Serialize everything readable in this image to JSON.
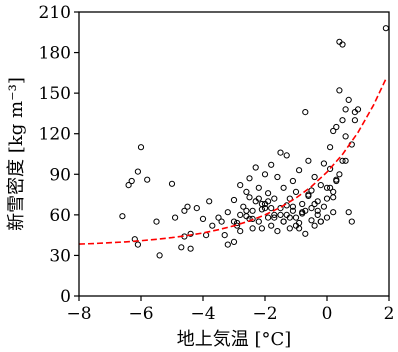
{
  "chart_data": {
    "type": "scatter",
    "title": "",
    "xlabel": "地上気温 [°C]",
    "ylabel": "新雪密度 [kg m⁻³]",
    "xlim": [
      -8,
      2
    ],
    "ylim": [
      0,
      210
    ],
    "xticks": [
      -8,
      -6,
      -4,
      -2,
      0,
      2
    ],
    "yticks": [
      0,
      30,
      60,
      90,
      120,
      150,
      180,
      210
    ],
    "x_tick_labels": [
      "−8",
      "−6",
      "−4",
      "−2",
      "0",
      "2"
    ],
    "y_tick_labels": [
      "0",
      "30",
      "60",
      "90",
      "120",
      "150",
      "180",
      "210"
    ],
    "grid": false,
    "legend": false,
    "colors": {
      "points": "#000000",
      "fit_curve": "#ff0000"
    },
    "series": [
      {
        "kind": "scatter",
        "marker": "open-circle",
        "x": [
          -6.6,
          -6.4,
          -6.3,
          -6.1,
          -6.0,
          -6.1,
          -6.2,
          -5.8,
          -5.5,
          -5.4,
          -5.0,
          -4.9,
          -4.7,
          -4.6,
          -4.6,
          -4.5,
          -4.4,
          -4.4,
          -4.2,
          -4.0,
          -3.9,
          -3.8,
          -3.7,
          -3.5,
          -3.3,
          -3.2,
          -3.2,
          -3.0,
          -3.0,
          -2.9,
          -2.8,
          -2.8,
          -2.7,
          -2.6,
          -2.6,
          -2.5,
          -2.5,
          -2.4,
          -2.4,
          -2.3,
          -2.3,
          -2.2,
          -2.2,
          -2.1,
          -2.1,
          -2.0,
          -2.0,
          -1.9,
          -1.9,
          -1.8,
          -1.8,
          -1.7,
          -1.7,
          -1.6,
          -1.6,
          -1.5,
          -1.5,
          -1.4,
          -1.4,
          -1.3,
          -1.3,
          -1.2,
          -1.2,
          -1.1,
          -1.1,
          -1.0,
          -1.0,
          -0.9,
          -0.9,
          -0.8,
          -0.8,
          -0.7,
          -0.7,
          -0.6,
          -0.6,
          -0.5,
          -0.5,
          -0.4,
          -0.4,
          -0.3,
          -0.3,
          -0.2,
          -0.2,
          -0.1,
          -0.1,
          0.0,
          0.0,
          0.1,
          0.1,
          0.2,
          0.2,
          0.3,
          0.3,
          0.4,
          0.4,
          0.5,
          0.5,
          0.6,
          0.6,
          0.7,
          0.7,
          0.8,
          0.8,
          0.9,
          1.0,
          1.9,
          -2.8,
          -2.5,
          -2.0,
          -1.7,
          -1.3,
          -0.9,
          -0.6,
          -0.3,
          0.0,
          0.3,
          -3.4,
          -2.6,
          -1.9,
          -1.2,
          -0.8,
          -0.2,
          0.2,
          0.5,
          -3.0,
          -2.2,
          -1.5,
          -1.0,
          -0.4,
          0.1,
          -2.4,
          -1.8,
          -1.1,
          -0.5,
          0.4,
          0.6,
          0.9,
          -2.9,
          -2.1,
          -1.4,
          -0.7,
          0.2
        ],
        "y": [
          59,
          82,
          85,
          92,
          110,
          38,
          42,
          86,
          55,
          30,
          83,
          58,
          36,
          44,
          63,
          66,
          35,
          46,
          65,
          57,
          45,
          70,
          52,
          58,
          45,
          62,
          38,
          71,
          40,
          54,
          82,
          48,
          66,
          77,
          59,
          73,
          87,
          50,
          63,
          95,
          70,
          55,
          80,
          64,
          50,
          90,
          68,
          58,
          76,
          52,
          97,
          60,
          72,
          88,
          48,
          106,
          65,
          55,
          80,
          60,
          104,
          50,
          72,
          85,
          63,
          58,
          77,
          93,
          54,
          68,
          61,
          136,
          46,
          74,
          100,
          56,
          65,
          88,
          52,
          70,
          60,
          82,
          55,
          98,
          66,
          72,
          58,
          110,
          94,
          77,
          62,
          86,
          125,
          188,
          152,
          130,
          186,
          118,
          138,
          62,
          145,
          112,
          55,
          130,
          138,
          198,
          60,
          57,
          65,
          58,
          67,
          50,
          75,
          63,
          80,
          85,
          55,
          63,
          70,
          58,
          62,
          55,
          73,
          100,
          55,
          72,
          60,
          52,
          68,
          80,
          57,
          65,
          66,
          78,
          90,
          100,
          136,
          52,
          68,
          55,
          63,
          122
        ]
      },
      {
        "kind": "fit-line",
        "style": "dashed",
        "x": [
          -8.0,
          -7.5,
          -7.0,
          -6.5,
          -6.0,
          -5.5,
          -5.0,
          -4.5,
          -4.0,
          -3.5,
          -3.0,
          -2.5,
          -2.0,
          -1.5,
          -1.0,
          -0.5,
          0.0,
          0.5,
          1.0,
          1.5,
          1.9
        ],
        "y": [
          38.4,
          38.8,
          39.4,
          40.0,
          40.9,
          41.9,
          43.2,
          44.7,
          46.6,
          49.0,
          51.9,
          55.5,
          60.0,
          65.6,
          72.5,
          81.0,
          91.6,
          104.7,
          121.0,
          141.1,
          160.5
        ]
      }
    ]
  }
}
